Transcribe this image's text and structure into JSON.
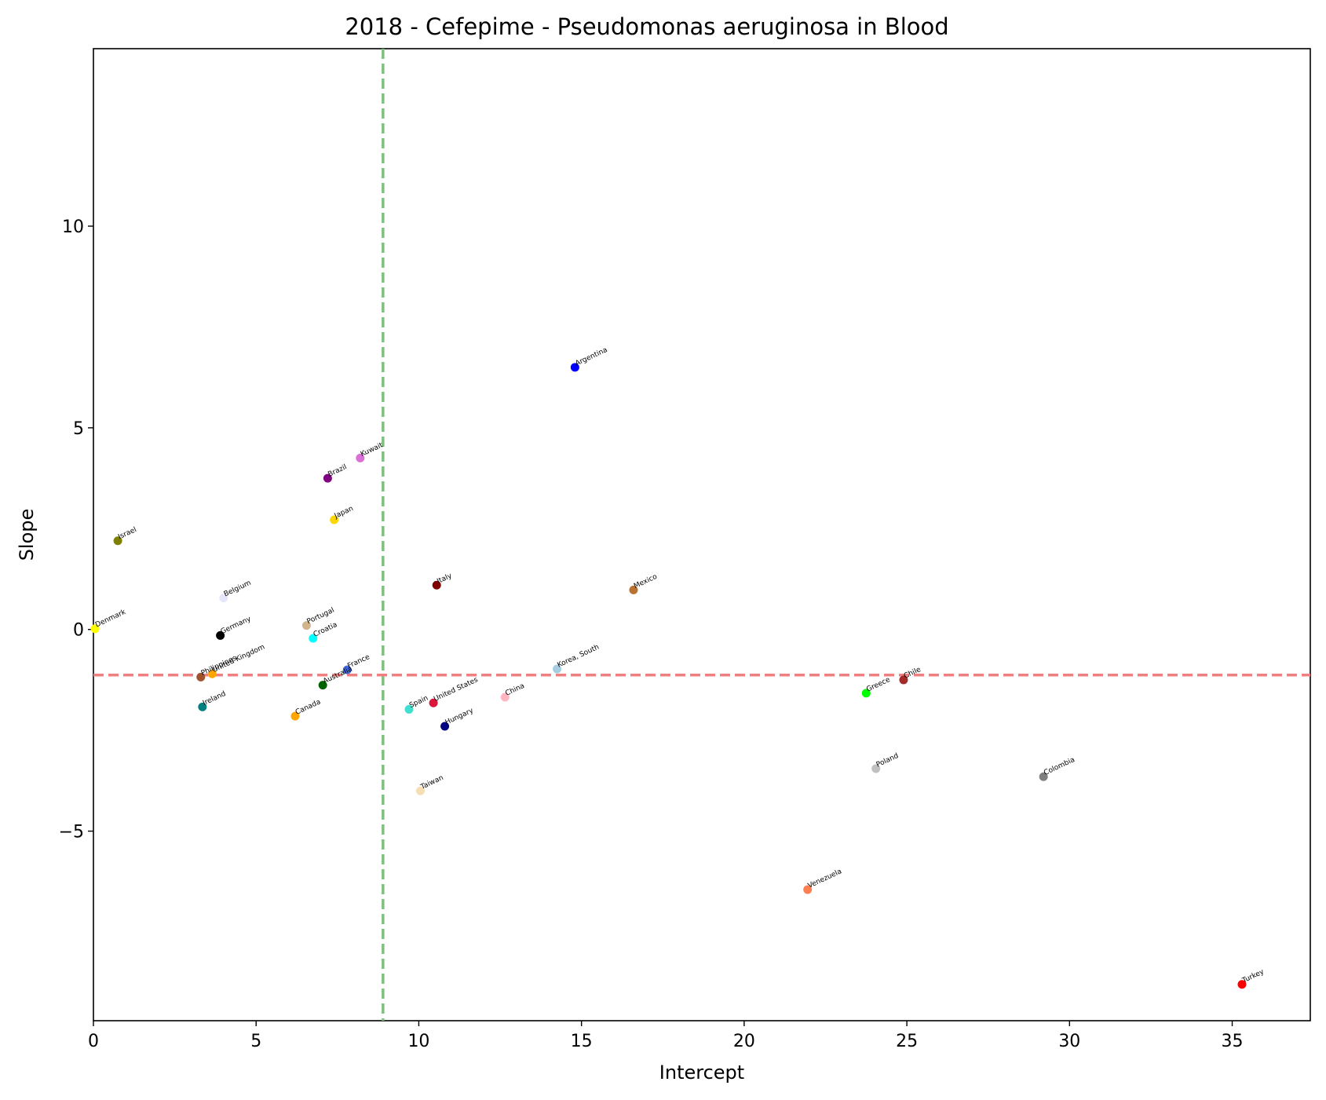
{
  "chart_data": {
    "type": "scatter",
    "title": "2018 - Cefepime - Pseudomonas aeruginosa in Blood",
    "xlabel": "Intercept",
    "ylabel": "Slope",
    "xlim": [
      0,
      37.4
    ],
    "ylim": [
      -9.7,
      14.4
    ],
    "xticks": [
      0,
      5,
      10,
      15,
      20,
      25,
      30,
      35
    ],
    "yticks": [
      -5,
      0,
      5,
      10
    ],
    "ytick_labels": [
      "−5",
      "0",
      "5",
      "10"
    ],
    "grid": false,
    "reference_lines": {
      "vertical": {
        "x": 8.9,
        "color": "#7fbf7f",
        "style": "dashed"
      },
      "horizontal": {
        "y": -1.13,
        "color": "#f08080",
        "style": "dashed"
      }
    },
    "points": [
      {
        "label": "Argentina",
        "x": 14.8,
        "y": 6.5,
        "color": "#0000ff"
      },
      {
        "label": "Kuwait",
        "x": 8.2,
        "y": 4.25,
        "color": "#da70d6"
      },
      {
        "label": "Brazil",
        "x": 7.2,
        "y": 3.75,
        "color": "#800080"
      },
      {
        "label": "Japan",
        "x": 7.4,
        "y": 2.72,
        "color": "#ffd700"
      },
      {
        "label": "Israel",
        "x": 0.75,
        "y": 2.2,
        "color": "#808000"
      },
      {
        "label": "Italy",
        "x": 10.55,
        "y": 1.1,
        "color": "#800000"
      },
      {
        "label": "Mexico",
        "x": 16.6,
        "y": 0.98,
        "color": "#b87333"
      },
      {
        "label": "Belgium",
        "x": 4.0,
        "y": 0.78,
        "color": "#e6e6fa"
      },
      {
        "label": "Portugal",
        "x": 6.55,
        "y": 0.1,
        "color": "#d2b48c"
      },
      {
        "label": "Denmark",
        "x": 0.05,
        "y": 0.02,
        "color": "#ffff00"
      },
      {
        "label": "Germany",
        "x": 3.9,
        "y": -0.15,
        "color": "#000000"
      },
      {
        "label": "Croatia",
        "x": 6.75,
        "y": -0.22,
        "color": "#00ffff"
      },
      {
        "label": "Korea, South",
        "x": 14.25,
        "y": -0.98,
        "color": "#a6cee3"
      },
      {
        "label": "France",
        "x": 7.8,
        "y": -1.0,
        "color": "#4169e1"
      },
      {
        "label": "United Kingdom",
        "x": 3.65,
        "y": -1.1,
        "color": "#ffa500"
      },
      {
        "label": "Philippines",
        "x": 3.3,
        "y": -1.18,
        "color": "#a0522d"
      },
      {
        "label": "Chile",
        "x": 24.9,
        "y": -1.25,
        "color": "#a52a2a"
      },
      {
        "label": "Australia",
        "x": 7.05,
        "y": -1.38,
        "color": "#006400"
      },
      {
        "label": "Greece",
        "x": 23.75,
        "y": -1.58,
        "color": "#00ff00"
      },
      {
        "label": "China",
        "x": 12.65,
        "y": -1.68,
        "color": "#ffb6c1"
      },
      {
        "label": "United States",
        "x": 10.45,
        "y": -1.82,
        "color": "#dc143c"
      },
      {
        "label": "Ireland",
        "x": 3.35,
        "y": -1.92,
        "color": "#008080"
      },
      {
        "label": "Spain",
        "x": 9.7,
        "y": -1.98,
        "color": "#40e0d0"
      },
      {
        "label": "Canada",
        "x": 6.2,
        "y": -2.15,
        "color": "#ffa500"
      },
      {
        "label": "Hungary",
        "x": 10.8,
        "y": -2.4,
        "color": "#000080"
      },
      {
        "label": "Poland",
        "x": 24.05,
        "y": -3.45,
        "color": "#c0c0c0"
      },
      {
        "label": "Colombia",
        "x": 29.2,
        "y": -3.65,
        "color": "#808080"
      },
      {
        "label": "Taiwan",
        "x": 10.05,
        "y": -4.0,
        "color": "#f5deb3"
      },
      {
        "label": "Venezuela",
        "x": 21.95,
        "y": -6.45,
        "color": "#ff7f50"
      },
      {
        "label": "Turkey",
        "x": 35.3,
        "y": -8.8,
        "color": "#ff0000"
      }
    ]
  }
}
